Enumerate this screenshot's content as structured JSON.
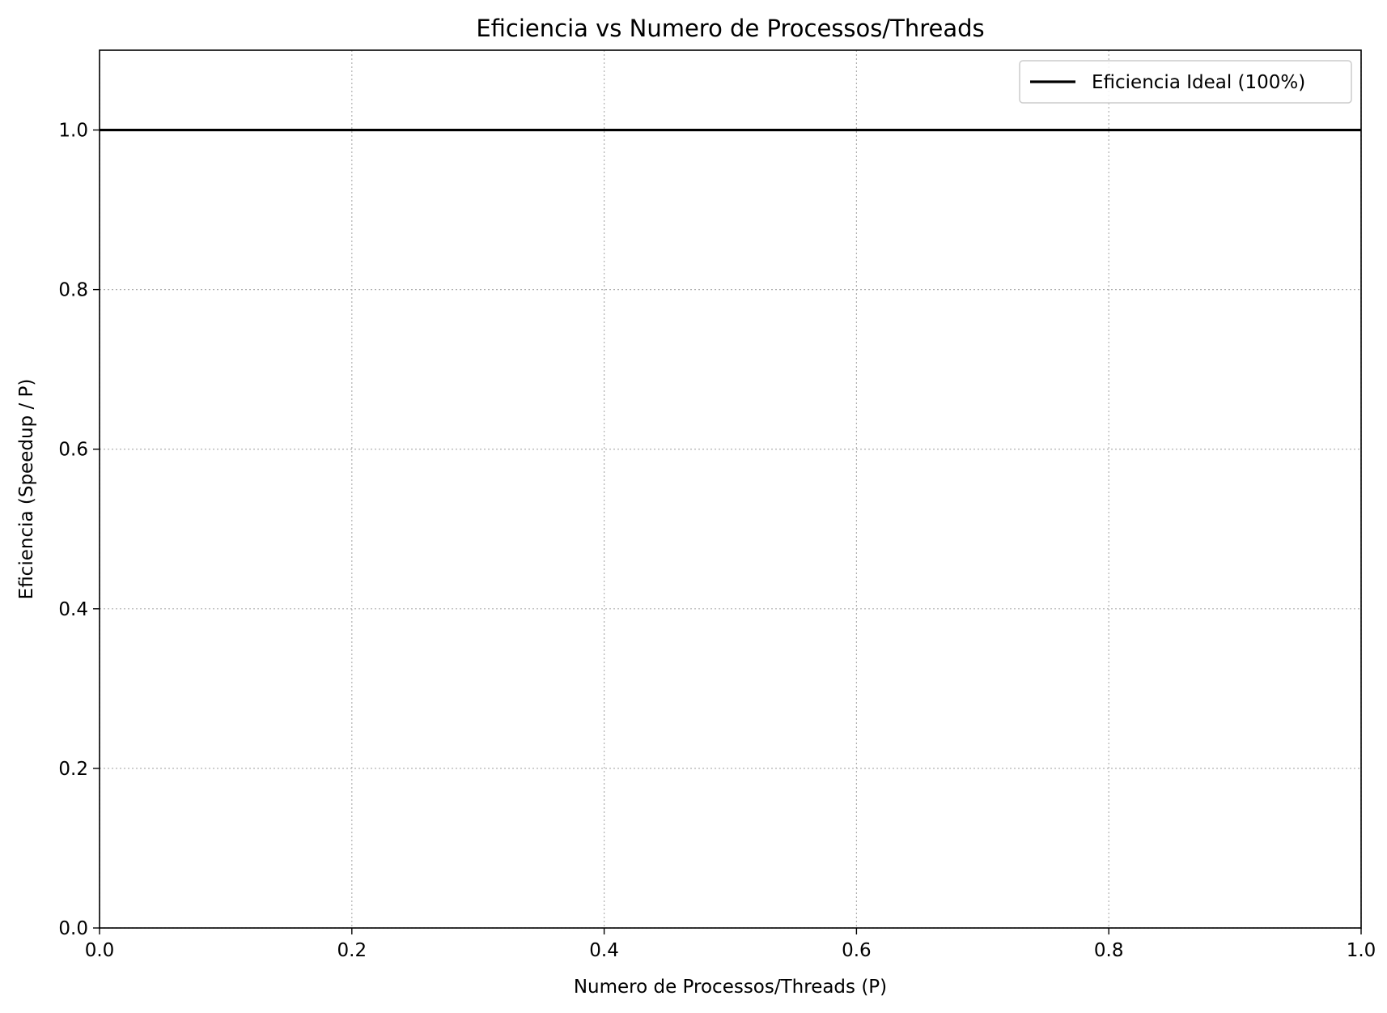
{
  "chart_data": {
    "type": "line",
    "title": "Eficiencia vs Numero de Processos/Threads",
    "xlabel": "Numero de Processos/Threads (P)",
    "ylabel": "Eficiencia (Speedup / P)",
    "xlim": [
      0.0,
      1.0
    ],
    "ylim": [
      0.0,
      1.1
    ],
    "xticks": [
      0.0,
      0.2,
      0.4,
      0.6,
      0.8,
      1.0
    ],
    "xtick_labels": [
      "0.0",
      "0.2",
      "0.4",
      "0.6",
      "0.8",
      "1.0"
    ],
    "yticks": [
      0.0,
      0.2,
      0.4,
      0.6,
      0.8,
      1.0
    ],
    "ytick_labels": [
      "0.0",
      "0.2",
      "0.4",
      "0.6",
      "0.8",
      "1.0"
    ],
    "grid": true,
    "legend_position": "top-right",
    "series": [
      {
        "name": "Eficiencia Ideal (100%)",
        "color": "#000000",
        "style": "solid",
        "x": [
          0.0,
          1.0
        ],
        "y": [
          1.0,
          1.0
        ]
      }
    ]
  }
}
